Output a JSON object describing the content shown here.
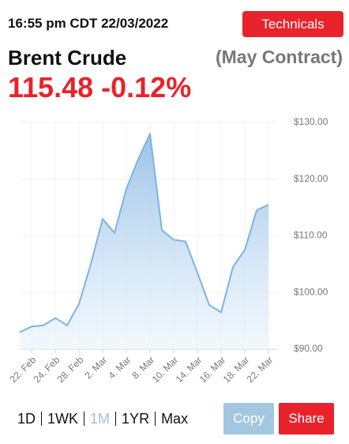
{
  "header": {
    "timestamp": "16:55 pm CDT 22/03/2022",
    "button": "Technicals"
  },
  "quote": {
    "name": "Brent Crude",
    "contract": "(May Contract)",
    "price": "115.48",
    "change": "-0.12%"
  },
  "chart_data": {
    "type": "area",
    "categories": [
      null,
      "22. Feb",
      null,
      "24. Feb",
      null,
      "28. Feb",
      null,
      "2. Mar",
      null,
      "4. Mar",
      null,
      "8. Mar",
      null,
      "10. Mar",
      null,
      "14. Mar",
      null,
      "16. Mar",
      null,
      "18. Mar",
      null,
      "22. Mar"
    ],
    "values": [
      93.0,
      94.0,
      94.2,
      95.5,
      94.2,
      98.0,
      105.0,
      113.0,
      110.5,
      118.3,
      123.5,
      128.0,
      111.0,
      109.3,
      109.0,
      103.5,
      97.8,
      96.5,
      104.5,
      107.5,
      114.5,
      115.5
    ],
    "color": "#7eb3e3",
    "ylim": [
      90,
      130
    ],
    "yticks": [
      {
        "value": 90,
        "label": "$90.00"
      },
      {
        "value": 100,
        "label": "$100.00"
      },
      {
        "value": 110,
        "label": "$110.00"
      },
      {
        "value": 120,
        "label": "$120.00"
      },
      {
        "value": 130,
        "label": "$130.00"
      }
    ],
    "grid": true
  },
  "controls": {
    "ranges": [
      "1D",
      "1WK",
      "1M",
      "1YR",
      "Max"
    ],
    "active_range": "1M",
    "copy": "Copy",
    "share": "Share"
  }
}
